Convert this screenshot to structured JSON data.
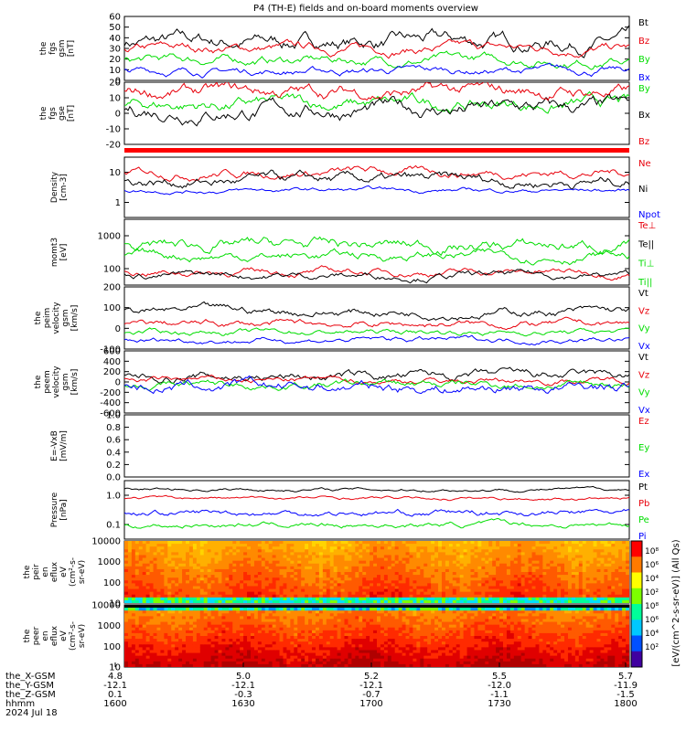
{
  "title": "P4 (TH-E) fields and on-board moments overview",
  "colors": {
    "black": "#000000",
    "red": "#e8000b",
    "green": "#00dd00",
    "blue": "#0000ff"
  },
  "chart_data": [
    {
      "type": "line",
      "ylabel": [
        "the",
        "fgs",
        "gsm",
        "[nT]"
      ],
      "ylim": [
        0,
        60
      ],
      "ticks": [
        "60",
        "50",
        "40",
        "30",
        "20",
        "10",
        "0"
      ],
      "series": [
        {
          "name": "Bt",
          "color": "#000000",
          "level": 36
        },
        {
          "name": "Bz",
          "color": "#e8000b",
          "level": 30
        },
        {
          "name": "By",
          "color": "#00dd00",
          "level": 19
        },
        {
          "name": "Bx",
          "color": "#0000ff",
          "level": 9
        }
      ]
    },
    {
      "type": "line",
      "ylabel": [
        "the",
        "fgs",
        "gse",
        "[nT]"
      ],
      "ylim": [
        -30,
        20
      ],
      "ticks": [
        "20",
        "10",
        "0",
        "-10",
        "-20"
      ],
      "series": [
        {
          "name": "By",
          "color": "#00dd00",
          "level": 2
        },
        {
          "name": "Bx",
          "color": "#000000",
          "level": -2
        },
        {
          "name": "Bz",
          "color": "#e8000b",
          "level": 12
        }
      ]
    },
    {
      "type": "line",
      "ylabel": [
        "Density",
        "[cm-3]"
      ],
      "scale": "log",
      "ticks": [
        "10",
        "1"
      ],
      "series": [
        {
          "name": "Ne",
          "color": "#e8000b"
        },
        {
          "name": "Ni",
          "color": "#000000"
        },
        {
          "name": "Npot",
          "color": "#0000ff"
        }
      ]
    },
    {
      "type": "line",
      "ylabel": [
        "momt3",
        "[eV]"
      ],
      "scale": "log",
      "ticks": [
        "1000",
        "100"
      ],
      "series": [
        {
          "name": "Te⊥",
          "color": "#e8000b"
        },
        {
          "name": "Te||",
          "color": "#000000"
        },
        {
          "name": "Ti⊥",
          "color": "#00dd00"
        },
        {
          "name": "Ti||",
          "color": "#00dd00"
        }
      ]
    },
    {
      "type": "line",
      "ylabel": [
        "the",
        "peim",
        "velocity",
        "gsm",
        "[km/s]"
      ],
      "ylim": [
        -150,
        250
      ],
      "ticks": [
        "200",
        "100",
        "0",
        "-100"
      ],
      "series": [
        {
          "name": "Vt",
          "color": "#000000"
        },
        {
          "name": "Vz",
          "color": "#e8000b"
        },
        {
          "name": "Vy",
          "color": "#00dd00"
        },
        {
          "name": "Vx",
          "color": "#0000ff"
        }
      ]
    },
    {
      "type": "line",
      "ylabel": [
        "the",
        "peem",
        "velocity",
        "gsm",
        "[km/s]"
      ],
      "ylim": [
        -700,
        700
      ],
      "ticks": [
        "600",
        "400",
        "200",
        "0",
        "-200",
        "-400",
        "-600"
      ],
      "series": [
        {
          "name": "Vt",
          "color": "#000000"
        },
        {
          "name": "Vz",
          "color": "#e8000b"
        },
        {
          "name": "Vy",
          "color": "#00dd00"
        },
        {
          "name": "Vx",
          "color": "#0000ff"
        }
      ]
    },
    {
      "type": "line",
      "ylabel": [
        "E=-VxB",
        "[mV/m]"
      ],
      "ylim": [
        0,
        1
      ],
      "ticks": [
        "1.0",
        "0.8",
        "0.6",
        "0.4",
        "0.2",
        "0.0"
      ],
      "series": [
        {
          "name": "Ez",
          "color": "#e8000b"
        },
        {
          "name": "Ey",
          "color": "#00dd00"
        },
        {
          "name": "Ex",
          "color": "#0000ff"
        }
      ]
    },
    {
      "type": "line",
      "ylabel": [
        "Pressure",
        "[nPa]"
      ],
      "scale": "log",
      "ticks": [
        "1.0",
        "0.1"
      ],
      "series": [
        {
          "name": "Pt",
          "color": "#000000"
        },
        {
          "name": "Pb",
          "color": "#e8000b"
        },
        {
          "name": "Pe",
          "color": "#00dd00"
        },
        {
          "name": "Pi",
          "color": "#0000ff"
        }
      ]
    },
    {
      "type": "heatmap",
      "ylabel": [
        "the",
        "peir",
        "en",
        "eflux",
        "eV",
        "(cm²-s-",
        "sr-eV)"
      ],
      "ticks": [
        "10000",
        "1000",
        "100",
        "10"
      ]
    },
    {
      "type": "heatmap",
      "ylabel": [
        "the",
        "peer",
        "en",
        "eflux",
        "eV",
        "(cm²-s-",
        "sr-eV)"
      ],
      "ticks": [
        "10000",
        "1000",
        "100",
        "10"
      ]
    }
  ],
  "colorbar": {
    "label": "[eV/(cm^2-s-sr-eV)] (All Qs)",
    "ticks": [
      "10⁸",
      "10⁶",
      "10⁴",
      "10²",
      "10⁸",
      "10⁶",
      "10⁴",
      "10²"
    ]
  },
  "x_axis": {
    "row_labels": [
      "the_X-GSM",
      "the_Y-GSM",
      "the_Z-GSM",
      "hhmm",
      "2024 Jul 18"
    ],
    "columns": [
      [
        "4.8",
        "-12.1",
        "0.1",
        "1600"
      ],
      [
        "5.0",
        "-12.1",
        "-0.3",
        "1630"
      ],
      [
        "5.2",
        "-12.1",
        "-0.7",
        "1700"
      ],
      [
        "5.5",
        "-12.0",
        "-1.1",
        "1730"
      ],
      [
        "5.7",
        "-11.9",
        "-1.5",
        "1800"
      ]
    ]
  }
}
